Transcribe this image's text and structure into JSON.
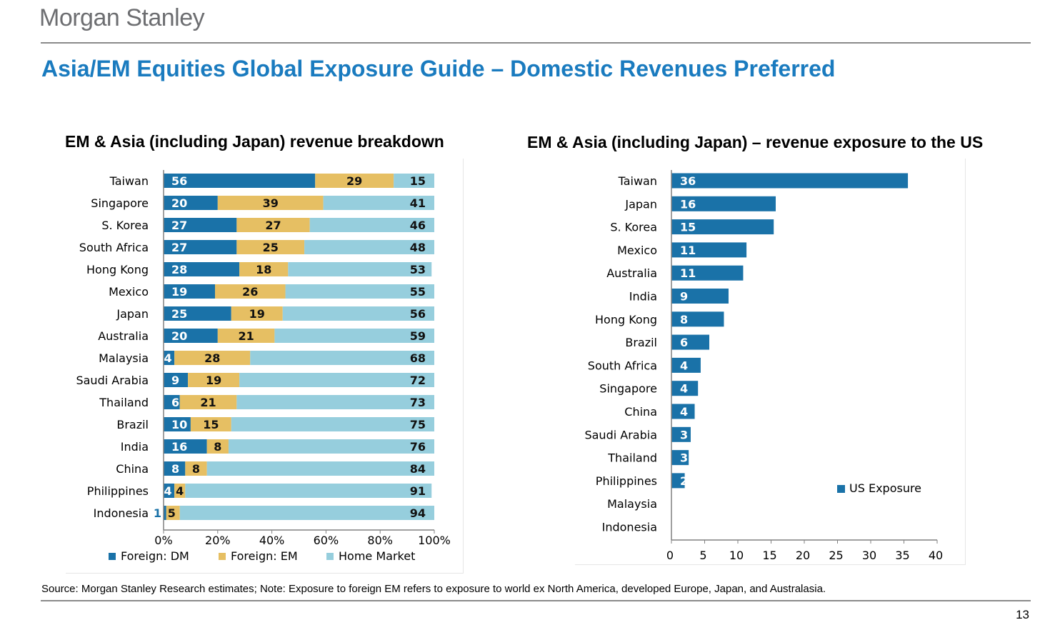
{
  "header": {
    "logo": "Morgan Stanley",
    "title": "Asia/EM Equities Global Exposure Guide – Domestic Revenues Preferred"
  },
  "chart_data": [
    {
      "type": "bar",
      "orientation": "horizontal",
      "stacked": true,
      "title": "EM & Asia (including Japan) revenue breakdown",
      "categories": [
        "Taiwan",
        "Singapore",
        "S. Korea",
        "South Africa",
        "Hong Kong",
        "Mexico",
        "Japan",
        "Australia",
        "Malaysia",
        "Saudi Arabia",
        "Thailand",
        "Brazil",
        "India",
        "China",
        "Philippines",
        "Indonesia"
      ],
      "series": [
        {
          "name": "Foreign: DM",
          "color": "#1a72a8",
          "values": [
            56,
            20,
            27,
            27,
            28,
            19,
            25,
            20,
            4,
            9,
            6,
            10,
            16,
            8,
            4,
            1
          ]
        },
        {
          "name": "Foreign: EM",
          "color": "#e6bf63",
          "values": [
            29,
            39,
            27,
            25,
            18,
            26,
            19,
            21,
            28,
            19,
            21,
            15,
            8,
            8,
            4,
            5
          ]
        },
        {
          "name": "Home Market",
          "color": "#96cedd",
          "values": [
            15,
            41,
            46,
            48,
            53,
            55,
            56,
            59,
            68,
            72,
            73,
            75,
            76,
            84,
            91,
            94
          ]
        }
      ],
      "xlim": [
        0,
        100
      ],
      "xticks": [
        "0%",
        "20%",
        "40%",
        "60%",
        "80%",
        "100%"
      ],
      "legend": "bottom"
    },
    {
      "type": "bar",
      "orientation": "horizontal",
      "title": "EM & Asia (including Japan) – revenue exposure to the US",
      "categories": [
        "Taiwan",
        "Japan",
        "S. Korea",
        "Mexico",
        "Australia",
        "India",
        "Hong Kong",
        "Brazil",
        "South Africa",
        "Singapore",
        "China",
        "Saudi Arabia",
        "Thailand",
        "Philippines",
        "Malaysia",
        "Indonesia"
      ],
      "series": [
        {
          "name": "US Exposure",
          "color": "#1a72a8",
          "values": [
            35.6,
            15.7,
            15.4,
            11.3,
            10.8,
            8.6,
            7.9,
            5.7,
            4.4,
            4.0,
            3.5,
            2.9,
            2.6,
            2.0,
            0,
            0
          ],
          "labels": [
            "36",
            "16",
            "15",
            "11",
            "11",
            "9",
            "8",
            "6",
            "4",
            "4",
            "4",
            "3",
            "3",
            "2",
            "",
            ""
          ]
        }
      ],
      "xlim": [
        0,
        40
      ],
      "xticks": [
        "0",
        "5",
        "10",
        "15",
        "20",
        "25",
        "30",
        "35",
        "40"
      ],
      "legend": "right"
    }
  ],
  "footer": {
    "source": "Source: Morgan Stanley Research estimates; Note: Exposure to foreign EM refers to exposure to world ex North America, developed Europe, Japan, and Australasia.",
    "page_number": "13"
  }
}
